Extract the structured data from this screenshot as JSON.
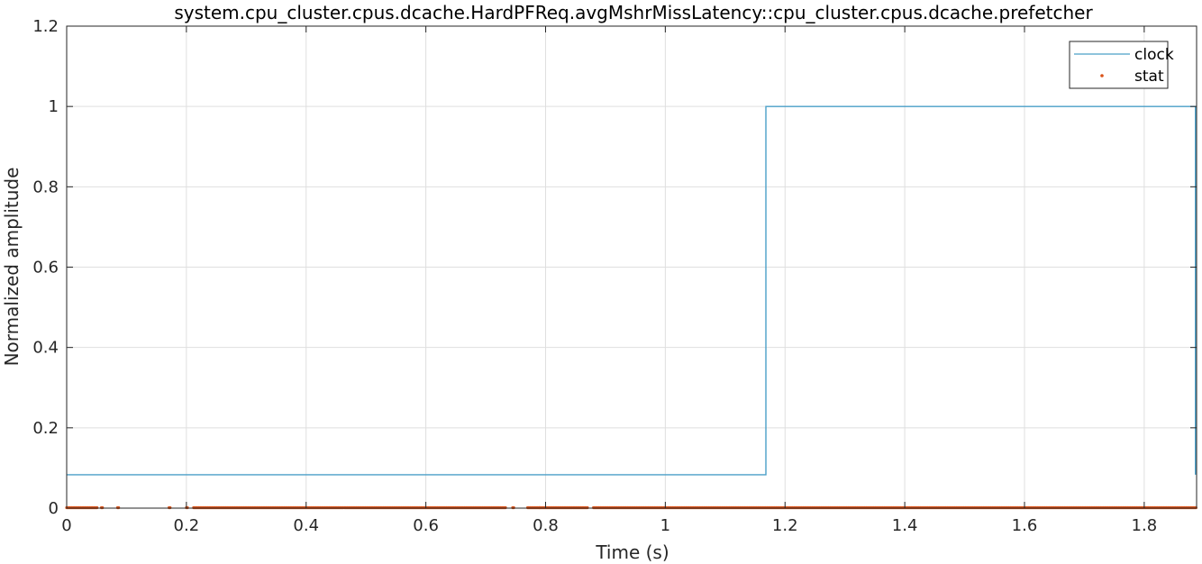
{
  "chart_data": {
    "type": "line",
    "title": "system.cpu_cluster.cpus.dcache.HardPFReq.avgMshrMissLatency::cpu_cluster.cpus.dcache.prefetcher",
    "xlabel": "Time (s)",
    "ylabel": "Normalized amplitude",
    "xlim": [
      0,
      1.8875
    ],
    "ylim": [
      0,
      1.2
    ],
    "xticks": [
      0,
      0.2,
      0.4,
      0.6,
      0.8,
      1,
      1.2,
      1.4,
      1.6,
      1.8
    ],
    "xtick_labels": [
      "0",
      "0.2",
      "0.4",
      "0.6",
      "0.8",
      "1",
      "1.2",
      "1.4",
      "1.6",
      "1.8"
    ],
    "yticks": [
      0,
      0.2,
      0.4,
      0.6,
      0.8,
      1,
      1.2
    ],
    "ytick_labels": [
      "0",
      "0.2",
      "0.4",
      "0.6",
      "0.8",
      "1",
      "1.2"
    ],
    "grid": true,
    "legend_position": "top-right",
    "series": [
      {
        "name": "clock",
        "style": "step-line",
        "color": "#4a9fc8",
        "x": [
          0,
          1.168,
          1.168,
          1.8855,
          1.8855
        ],
        "y": [
          0.0833,
          0.0833,
          1,
          1,
          0.0833
        ]
      },
      {
        "name": "stat",
        "style": "dots",
        "color": "#d95319",
        "y_value": 0,
        "segments": [
          [
            0,
            0.052
          ],
          [
            0.058,
            0.061
          ],
          [
            0.085,
            0.088
          ],
          [
            0.171,
            0.174
          ],
          [
            0.2,
            0.203
          ],
          [
            0.212,
            0.735
          ],
          [
            0.745,
            0.748
          ],
          [
            0.77,
            0.79
          ],
          [
            0.79,
            0.87
          ],
          [
            0.88,
            1.8875
          ]
        ]
      }
    ]
  }
}
